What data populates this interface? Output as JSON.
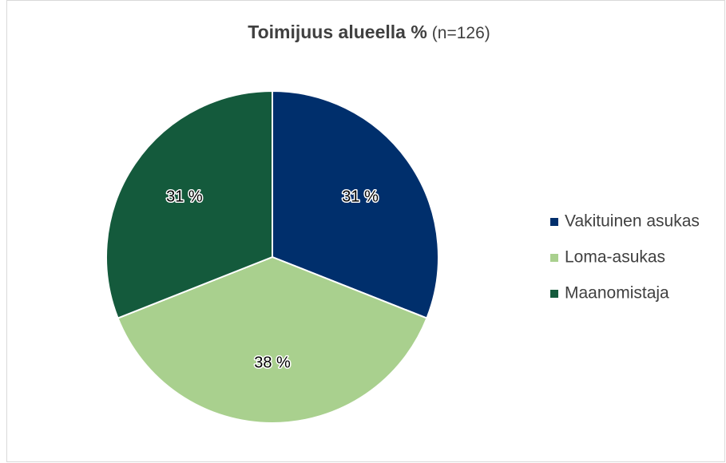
{
  "chart_data": {
    "type": "pie",
    "title": "Toimijuus alueella %",
    "subtitle": "(n=126)",
    "categories": [
      "Vakituinen asukas",
      "Loma-asukas",
      "Maanomistaja"
    ],
    "values": [
      31,
      38,
      31
    ],
    "value_labels": [
      "31 %",
      "38 %",
      "31 %"
    ],
    "colors": [
      "#002f6c",
      "#a9d08e",
      "#145a3c"
    ],
    "legend": "right"
  }
}
